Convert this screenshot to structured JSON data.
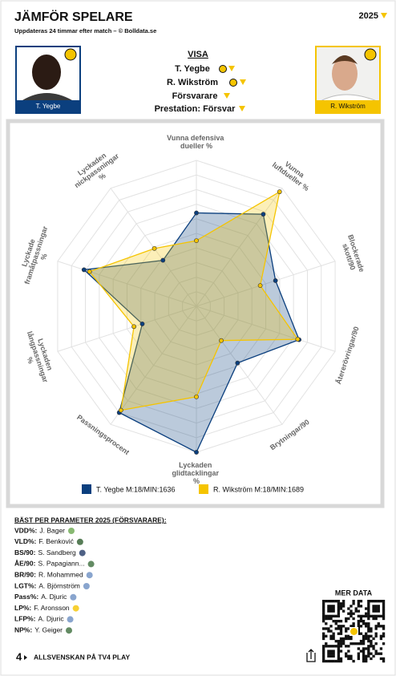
{
  "header": {
    "title": "JÄMFÖR SPELARE",
    "subtitle": "Uppdateras 24 timmar efter match – © Bolldata.se",
    "season": "2025"
  },
  "players": [
    {
      "name": "T. Yegbe"
    },
    {
      "name": "R. Wikström"
    }
  ],
  "selection": {
    "heading": "VISA",
    "player1": "T. Yegbe",
    "player2": "R. Wikström",
    "position": "Försvarare",
    "view": "Prestation: Försvar"
  },
  "chart_data": {
    "type": "radar",
    "categories": [
      "Vunna defensiva dueller %",
      "Vunna luftdueller %",
      "Blockerade skott/90",
      "Återerövringar/90",
      "Brytningar/90",
      "Lyckaden glidtacklingar %",
      "Passningsprocent",
      "Lyckaden långpassningar %",
      "Lyckade framåtpassningar %",
      "Lyckaden nickpassningar %"
    ],
    "series": [
      {
        "name": "T. Yegbe M:18/MIN:1636",
        "color": "#0b3f7e",
        "values": [
          64,
          78,
          57,
          74,
          48,
          100,
          90,
          39,
          81,
          39
        ]
      },
      {
        "name": "R. Wikström M:18/MIN:1689",
        "color": "#f5c400",
        "values": [
          45,
          97,
          46,
          73,
          29,
          62,
          88,
          45,
          77,
          49
        ]
      }
    ],
    "rlim": [
      0,
      100
    ],
    "rticks": [
      10,
      20,
      30,
      40,
      50,
      60,
      70,
      80,
      90,
      100
    ],
    "grid": true
  },
  "best": {
    "title": "BÄST PER PARAMETER 2025 (FÖRSVARARE):",
    "items": [
      {
        "param": "VDD%:",
        "player": "J. Bager"
      },
      {
        "param": "VLD%:",
        "player": "F. Benković"
      },
      {
        "param": "BS/90:",
        "player": "S. Sandberg"
      },
      {
        "param": "ÅE/90:",
        "player": "S. Papagiann..."
      },
      {
        "param": "BR/90:",
        "player": "R. Mohammed"
      },
      {
        "param": "LGT%:",
        "player": "A. Björnström"
      },
      {
        "param": "Pass%:",
        "player": "A. Djuric"
      },
      {
        "param": "LP%:",
        "player": "F. Aronsson"
      },
      {
        "param": "LFP%:",
        "player": "A. Djuric"
      },
      {
        "param": "NP%:",
        "player": "Y. Geiger"
      }
    ]
  },
  "footer": {
    "more": "MER DATA",
    "logo": "4",
    "brand": "ALLSVENSKAN PÅ TV4 PLAY"
  }
}
